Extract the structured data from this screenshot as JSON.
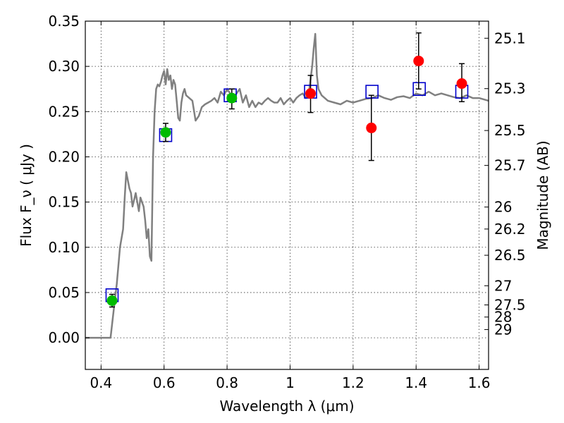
{
  "chart_data": {
    "type": "scatter",
    "xlabel": "Wavelength  λ (μm)",
    "ylabel": "Flux  F_ν  ( μJy )",
    "y2label": "Magnitude (AB)",
    "xlim": [
      0.35,
      1.63
    ],
    "ylim": [
      -0.035,
      0.35
    ],
    "grid": true,
    "x_ticks": [
      0.4,
      0.6,
      0.8,
      1.0,
      1.2,
      1.4,
      1.6
    ],
    "x_tick_labels": [
      "0.4",
      "0.6",
      "0.8",
      "1",
      "1.2",
      "1.4",
      "1.6"
    ],
    "y_ticks": [
      0.0,
      0.05,
      0.1,
      0.15,
      0.2,
      0.25,
      0.3,
      0.35
    ],
    "y_tick_labels": [
      "0.00",
      "0.05",
      "0.10",
      "0.15",
      "0.20",
      "0.25",
      "0.30",
      "0.35"
    ],
    "y2_ticks": [
      {
        "label": "25.1",
        "flux": 0.3311
      },
      {
        "label": "25.3",
        "flux": 0.2754
      },
      {
        "label": "25.5",
        "flux": 0.2291
      },
      {
        "label": "25.7",
        "flux": 0.1905
      },
      {
        "label": "26",
        "flux": 0.1445
      },
      {
        "label": "26.2",
        "flux": 0.1202
      },
      {
        "label": "26.5",
        "flux": 0.0912
      },
      {
        "label": "27",
        "flux": 0.0575
      },
      {
        "label": "27.5",
        "flux": 0.0363
      },
      {
        "label": "28",
        "flux": 0.0229
      },
      {
        "label": "29",
        "flux": 0.0091
      }
    ],
    "series": [
      {
        "kind": "line",
        "color": "#808080",
        "x": [
          0.35,
          0.43,
          0.44,
          0.45,
          0.46,
          0.47,
          0.475,
          0.48,
          0.49,
          0.495,
          0.5,
          0.51,
          0.515,
          0.52,
          0.525,
          0.53,
          0.535,
          0.54,
          0.545,
          0.55,
          0.555,
          0.56,
          0.565,
          0.57,
          0.575,
          0.58,
          0.585,
          0.59,
          0.595,
          0.6,
          0.605,
          0.61,
          0.615,
          0.62,
          0.625,
          0.63,
          0.635,
          0.64,
          0.645,
          0.65,
          0.655,
          0.66,
          0.665,
          0.67,
          0.68,
          0.69,
          0.7,
          0.71,
          0.72,
          0.73,
          0.74,
          0.75,
          0.76,
          0.77,
          0.78,
          0.79,
          0.8,
          0.81,
          0.82,
          0.83,
          0.84,
          0.85,
          0.86,
          0.87,
          0.88,
          0.89,
          0.9,
          0.91,
          0.92,
          0.93,
          0.94,
          0.95,
          0.96,
          0.97,
          0.98,
          0.99,
          1.0,
          1.01,
          1.02,
          1.03,
          1.04,
          1.05,
          1.06,
          1.07,
          1.075,
          1.08,
          1.085,
          1.09,
          1.1,
          1.12,
          1.14,
          1.16,
          1.18,
          1.2,
          1.22,
          1.24,
          1.26,
          1.28,
          1.3,
          1.32,
          1.34,
          1.36,
          1.38,
          1.4,
          1.42,
          1.44,
          1.46,
          1.48,
          1.5,
          1.52,
          1.54,
          1.56,
          1.58,
          1.6,
          1.63
        ],
        "y": [
          0.0,
          0.0,
          0.03,
          0.06,
          0.1,
          0.12,
          0.155,
          0.183,
          0.165,
          0.16,
          0.145,
          0.16,
          0.15,
          0.14,
          0.155,
          0.15,
          0.145,
          0.13,
          0.11,
          0.12,
          0.09,
          0.085,
          0.2,
          0.25,
          0.275,
          0.28,
          0.278,
          0.283,
          0.29,
          0.295,
          0.28,
          0.297,
          0.285,
          0.29,
          0.275,
          0.285,
          0.28,
          0.262,
          0.243,
          0.24,
          0.26,
          0.27,
          0.275,
          0.268,
          0.265,
          0.262,
          0.24,
          0.245,
          0.255,
          0.258,
          0.26,
          0.262,
          0.265,
          0.26,
          0.272,
          0.268,
          0.275,
          0.27,
          0.265,
          0.27,
          0.275,
          0.26,
          0.268,
          0.255,
          0.262,
          0.255,
          0.26,
          0.258,
          0.262,
          0.265,
          0.262,
          0.26,
          0.26,
          0.265,
          0.258,
          0.262,
          0.265,
          0.26,
          0.265,
          0.268,
          0.27,
          0.265,
          0.272,
          0.3,
          0.32,
          0.336,
          0.29,
          0.275,
          0.268,
          0.262,
          0.26,
          0.258,
          0.262,
          0.26,
          0.262,
          0.264,
          0.265,
          0.268,
          0.265,
          0.263,
          0.266,
          0.267,
          0.265,
          0.27,
          0.268,
          0.272,
          0.268,
          0.27,
          0.268,
          0.266,
          0.265,
          0.268,
          0.265,
          0.265,
          0.262
        ]
      },
      {
        "kind": "open-square",
        "color": "#0000cc",
        "x": [
          0.435,
          0.605,
          0.81,
          1.065,
          1.26,
          1.41,
          1.545
        ],
        "y": [
          0.047,
          0.224,
          0.268,
          0.272,
          0.272,
          0.275,
          0.272
        ]
      },
      {
        "kind": "filled-circle",
        "color": "#00bb00",
        "x": [
          0.435,
          0.605,
          0.815
        ],
        "y": [
          0.041,
          0.227,
          0.265
        ],
        "yerr_low": [
          0.007,
          0.01,
          0.012
        ],
        "yerr_high": [
          0.007,
          0.01,
          0.01
        ]
      },
      {
        "kind": "filled-circle",
        "color": "#ff0000",
        "x": [
          1.065,
          1.258,
          1.408,
          1.545
        ],
        "y": [
          0.27,
          0.232,
          0.306,
          0.281
        ],
        "yerr_low": [
          0.021,
          0.036,
          0.031,
          0.02
        ],
        "yerr_high": [
          0.02,
          0.036,
          0.031,
          0.022
        ]
      }
    ]
  }
}
